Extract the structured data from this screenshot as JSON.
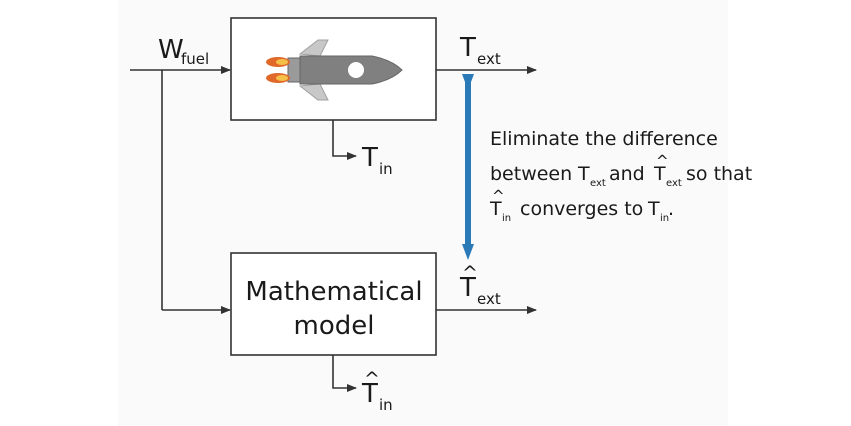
{
  "inputs": {
    "fuel": {
      "base": "W",
      "sub": "fuel"
    }
  },
  "outputs": {
    "t_ext": {
      "base": "T",
      "sub": "ext"
    },
    "t_in": {
      "base": "T",
      "sub": "in"
    },
    "t_ext_hat": {
      "base": "T",
      "sub": "ext",
      "accent": "^"
    },
    "t_in_hat": {
      "base": "T",
      "sub": "in",
      "accent": "^"
    }
  },
  "model_box": {
    "line1": "Mathematical",
    "line2": "model"
  },
  "description": {
    "line1": "Eliminate the difference",
    "line2": {
      "pre": "between",
      "t1": "T",
      "t1_sub": "ext",
      "mid": "and",
      "t2": "T",
      "t2_sub": "ext",
      "t2_accent": "^",
      "post": "so that"
    },
    "line3": {
      "t1": "T",
      "t1_sub": "in",
      "t1_accent": "^",
      "mid": "converges to",
      "t2": "T",
      "t2_sub": "in",
      "post": "."
    }
  },
  "colors": {
    "line": "#333333",
    "comparison_arrow": "#2a7ab8",
    "rocket_body": "#808080",
    "rocket_fin": "#c8c8c8",
    "flame_outer": "#e0692a",
    "flame_inner": "#f4c04a"
  },
  "icons": {
    "rocket": "rocket-icon"
  }
}
